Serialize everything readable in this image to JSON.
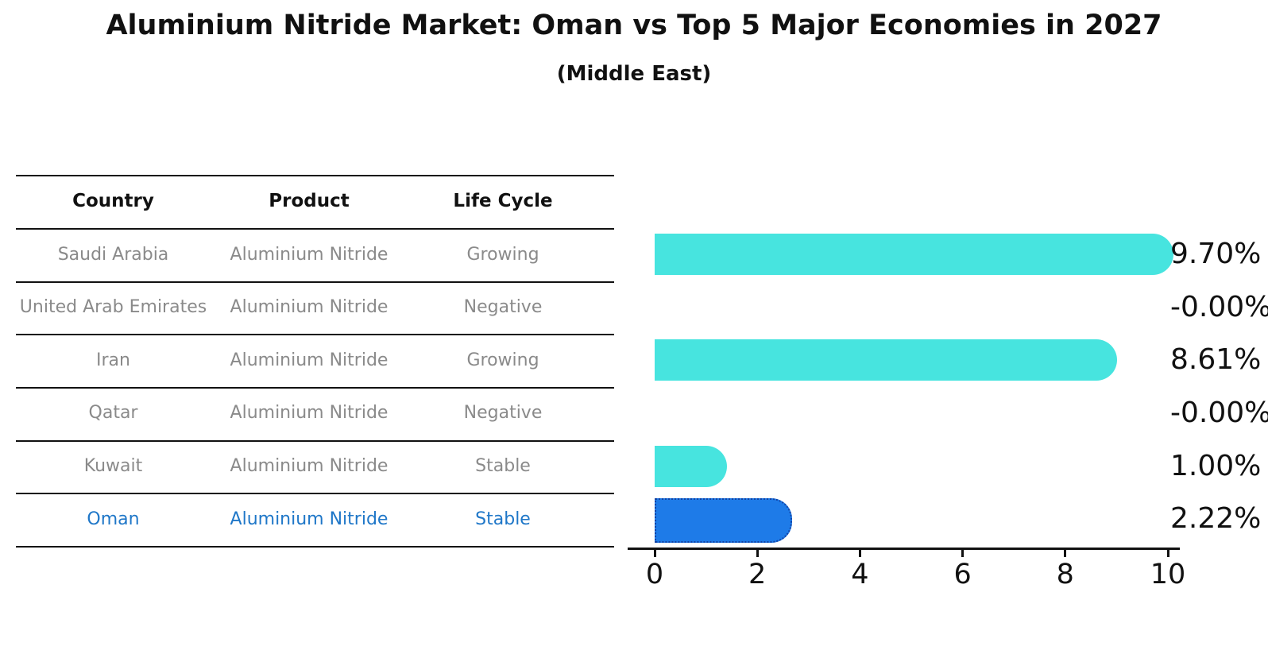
{
  "title": "Aluminium Nitride Market: Oman vs Top 5 Major Economies in 2027",
  "subtitle": "(Middle East)",
  "table": {
    "headers": [
      "Country",
      "Product",
      "Life Cycle"
    ],
    "rows": [
      {
        "country": "Saudi Arabia",
        "product": "Aluminium Nitride",
        "life_cycle": "Growing",
        "highlight": false
      },
      {
        "country": "United Arab Emirates",
        "product": "Aluminium Nitride",
        "life_cycle": "Negative",
        "highlight": false
      },
      {
        "country": "Iran",
        "product": "Aluminium Nitride",
        "life_cycle": "Growing",
        "highlight": false
      },
      {
        "country": "Qatar",
        "product": "Aluminium Nitride",
        "life_cycle": "Negative",
        "highlight": false
      },
      {
        "country": "Kuwait",
        "product": "Aluminium Nitride",
        "life_cycle": "Stable",
        "highlight": false
      },
      {
        "country": "Oman",
        "product": "Aluminium Nitride",
        "life_cycle": "Stable",
        "highlight": true
      }
    ]
  },
  "chart_data": {
    "type": "bar",
    "orientation": "horizontal",
    "title": "Aluminium Nitride Market: Oman vs Top 5 Major Economies in 2027",
    "subtitle": "(Middle East)",
    "categories": [
      "Saudi Arabia",
      "United Arab Emirates",
      "Iran",
      "Qatar",
      "Kuwait",
      "Oman"
    ],
    "values": [
      9.7,
      -0.0,
      8.61,
      -0.0,
      1.0,
      2.22
    ],
    "value_labels": [
      "9.70%",
      "-0.00%",
      "8.61%",
      "-0.00%",
      "1.00%",
      "2.22%"
    ],
    "xlabel": "",
    "ylabel": "",
    "xlim": [
      0,
      10
    ],
    "xticks": [
      "0",
      "2",
      "4",
      "6",
      "8",
      "10"
    ],
    "grid": false,
    "legend": false,
    "highlight_category": "Oman",
    "colors": {
      "bar": "#47E4DF",
      "highlight_bar": "#1E7BE8",
      "highlight_bar_border": "#1243A5",
      "highlight_text": "#1F77C8",
      "body_text": "#8A8A8A",
      "header_text": "#111111",
      "value_text": "#111111"
    }
  }
}
